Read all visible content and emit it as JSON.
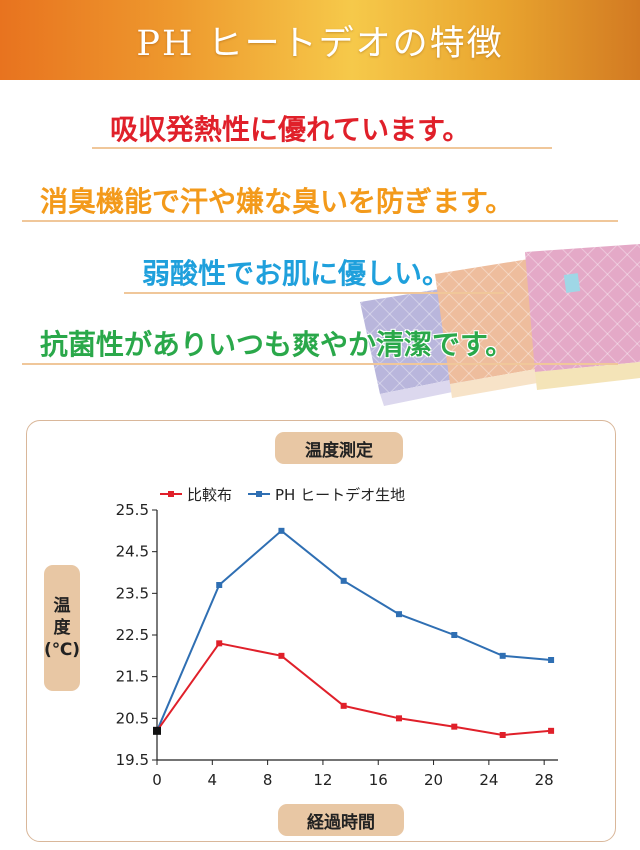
{
  "banner": {
    "title": "PH ヒートデオの特徴"
  },
  "features": [
    {
      "text": "吸収発熱性に優れています。",
      "color": "#e0202a"
    },
    {
      "text": "消臭機能で汗や嫌な臭いを防ぎます。",
      "color": "#f39a1b"
    },
    {
      "text": "弱酸性でお肌に優しい。",
      "color": "#1fa0dc"
    },
    {
      "text": "抗菌性がありいつも爽やか清潔です。",
      "color": "#2aa84a"
    }
  ],
  "chart_data": {
    "type": "line",
    "title": "温度測定",
    "xlabel": "経過時間",
    "ylabel": "温度（℃）",
    "ylabel_chars": [
      "温",
      "度",
      "(℃)"
    ],
    "xlim": [
      0,
      29
    ],
    "ylim": [
      19.5,
      25.5
    ],
    "x_ticks": [
      0,
      4,
      8,
      12,
      16,
      20,
      24,
      28
    ],
    "y_ticks": [
      19.5,
      20.5,
      21.5,
      22.5,
      23.5,
      24.5,
      25.5
    ],
    "grid": false,
    "legend": "top",
    "start_point": {
      "x": 0,
      "y": 20.2
    },
    "series": [
      {
        "name": "比較布",
        "color": "#e0202a",
        "x": [
          0,
          4.5,
          9,
          13.5,
          17.5,
          21.5,
          25,
          28.5
        ],
        "values": [
          20.2,
          22.3,
          22.0,
          20.8,
          20.5,
          20.3,
          20.1,
          20.2
        ]
      },
      {
        "name": "PH ヒートデオ生地",
        "color": "#2f6fb3",
        "x": [
          0,
          4.5,
          9,
          13.5,
          17.5,
          21.5,
          25,
          28.5
        ],
        "values": [
          20.2,
          23.7,
          25.0,
          23.8,
          23.0,
          22.5,
          22.0,
          21.9
        ]
      }
    ]
  }
}
